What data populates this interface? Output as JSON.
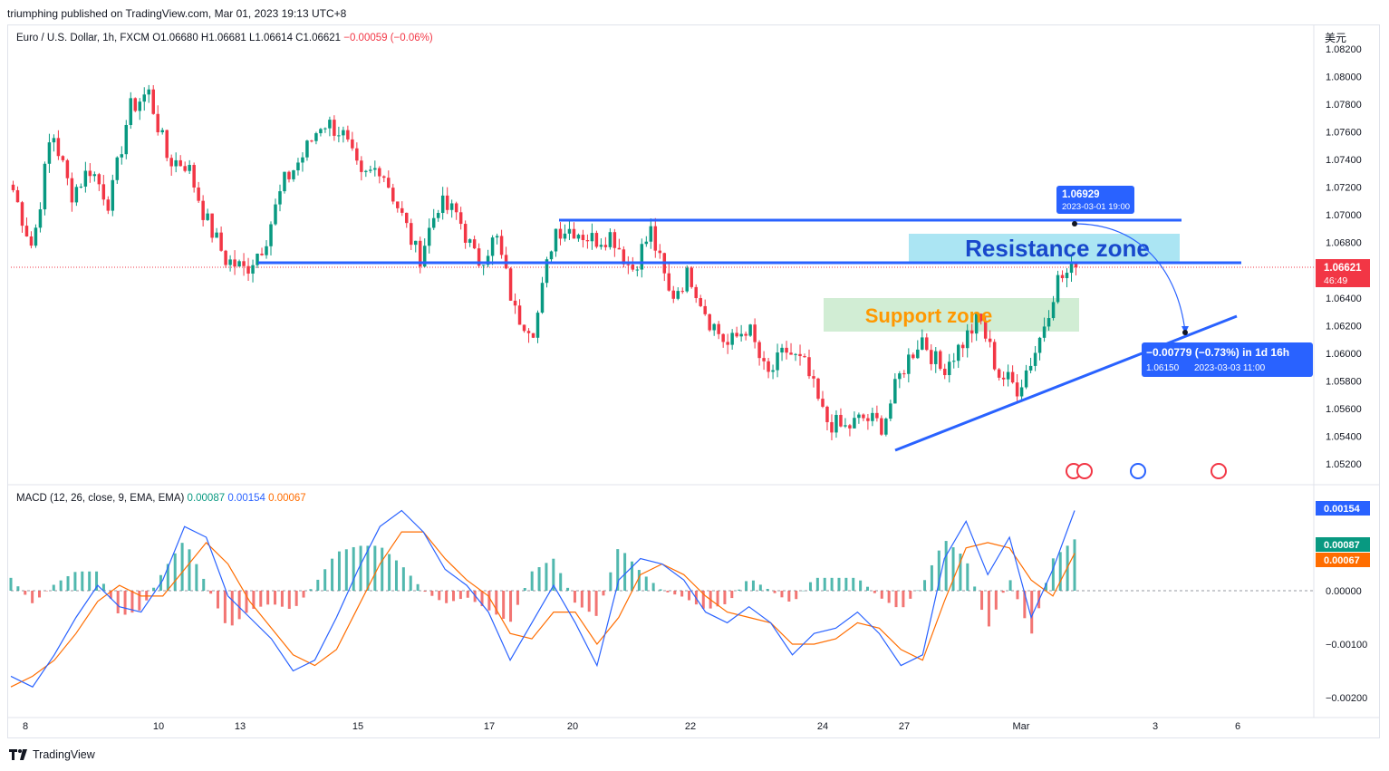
{
  "header": {
    "publisher_line": "triumphing published on TradingView.com, Mar 01, 2023 19:13 UTC+8"
  },
  "legend": {
    "symbol": "Euro / U.S. Dollar, 1h, FXCM",
    "open": "O1.06680",
    "high": "H1.06681",
    "low": "L1.06614",
    "close": "C1.06621",
    "change": "−0.00059 (−0.06%)"
  },
  "currency_label": "美元",
  "macd_legend": {
    "label": "MACD (12, 26, close, 9, EMA, EMA)",
    "v1": "0.00087",
    "v2": "0.00154",
    "v3": "0.00067"
  },
  "footer": {
    "brand": "TradingView"
  },
  "colors": {
    "up": "#089981",
    "down": "#f23645",
    "line": "#2962ff",
    "macd": "#2962ff",
    "signal": "#ff6d00",
    "hist_up": "#26a69a",
    "hist_down": "#ef5350"
  },
  "chart_data": [
    {
      "type": "candlestick",
      "title": "Euro / U.S. Dollar, 1h, FXCM",
      "x_ticks": [
        "8",
        "10",
        "13",
        "15",
        "17",
        "20",
        "22",
        "24",
        "27",
        "Mar",
        "3",
        "6"
      ],
      "y_ticks": [
        "1.08200",
        "1.08000",
        "1.07800",
        "1.07600",
        "1.07400",
        "1.07200",
        "1.07000",
        "1.06800",
        "1.06400",
        "1.06200",
        "1.06000",
        "1.05800",
        "1.05600",
        "1.05400",
        "1.05200"
      ],
      "ylim": [
        1.0513,
        1.0828
      ],
      "price_path": [
        {
          "x": "8",
          "y": 1.0718
        },
        {
          "x": "8",
          "y": 1.0676
        },
        {
          "x": "8",
          "y": 1.0762
        },
        {
          "x": "9",
          "y": 1.0715
        },
        {
          "x": "9",
          "y": 1.0734
        },
        {
          "x": "9",
          "y": 1.0708
        },
        {
          "x": "10",
          "y": 1.0776
        },
        {
          "x": "10",
          "y": 1.0789
        },
        {
          "x": "10",
          "y": 1.074
        },
        {
          "x": "10",
          "y": 1.0737
        },
        {
          "x": "13",
          "y": 1.0696
        },
        {
          "x": "13",
          "y": 1.0668
        },
        {
          "x": "13",
          "y": 1.066
        },
        {
          "x": "14",
          "y": 1.068
        },
        {
          "x": "14",
          "y": 1.0723
        },
        {
          "x": "14",
          "y": 1.0743
        },
        {
          "x": "14",
          "y": 1.0768
        },
        {
          "x": "15",
          "y": 1.076
        },
        {
          "x": "15",
          "y": 1.0725
        },
        {
          "x": "16",
          "y": 1.0736
        },
        {
          "x": "16",
          "y": 1.0703
        },
        {
          "x": "16",
          "y": 1.0668
        },
        {
          "x": "17",
          "y": 1.0708
        },
        {
          "x": "17",
          "y": 1.07
        },
        {
          "x": "17",
          "y": 1.0665
        },
        {
          "x": "18",
          "y": 1.0684
        },
        {
          "x": "18",
          "y": 1.0628
        },
        {
          "x": "19",
          "y": 1.0618
        },
        {
          "x": "19",
          "y": 1.069
        },
        {
          "x": "20",
          "y": 1.069
        },
        {
          "x": "20",
          "y": 1.0682
        },
        {
          "x": "21",
          "y": 1.0686
        },
        {
          "x": "21",
          "y": 1.066
        },
        {
          "x": "22",
          "y": 1.0688
        },
        {
          "x": "22",
          "y": 1.064
        },
        {
          "x": "23",
          "y": 1.0658
        },
        {
          "x": "23",
          "y": 1.0625
        },
        {
          "x": "23",
          "y": 1.0605
        },
        {
          "x": "24",
          "y": 1.062
        },
        {
          "x": "24",
          "y": 1.0582
        },
        {
          "x": "24",
          "y": 1.0602
        },
        {
          "x": "25",
          "y": 1.059
        },
        {
          "x": "26",
          "y": 1.0552
        },
        {
          "x": "26",
          "y": 1.0545
        },
        {
          "x": "27",
          "y": 1.0553
        },
        {
          "x": "27",
          "y": 1.0548
        },
        {
          "x": "28",
          "y": 1.0588
        },
        {
          "x": "28",
          "y": 1.0612
        },
        {
          "x": "28",
          "y": 1.0588
        },
        {
          "x": "28",
          "y": 1.0605
        },
        {
          "x": "Mar",
          "y": 1.0625
        },
        {
          "x": "Mar",
          "y": 1.0585
        },
        {
          "x": "Mar",
          "y": 1.0575
        },
        {
          "x": "Mar",
          "y": 1.0605
        },
        {
          "x": "Mar",
          "y": 1.0652
        },
        {
          "x": "Mar",
          "y": 1.0662
        }
      ],
      "last_price": {
        "value": "1.06621",
        "countdown": "46:49"
      },
      "annotations": {
        "resistance_zone": "Resistance zone",
        "support_zone": "Support zone",
        "top_label": {
          "price": "1.06929",
          "time": "2023-03-01 19:00"
        },
        "bottom_label": {
          "change": "−0.00779 (−0.73%) in 1d 16h",
          "price": "1.06150",
          "time": "2023-03-03  11:00"
        }
      }
    },
    {
      "type": "line",
      "title": "MACD (12, 26, close, 9, EMA, EMA)",
      "y_ticks": [
        "0.00000",
        "−0.00100",
        "−0.00200"
      ],
      "ylim": [
        -0.0022,
        0.0017
      ],
      "series": [
        {
          "name": "MACD",
          "values": [
            -0.0016,
            -0.0018,
            -0.0012,
            -0.0005,
            0.0001,
            -0.0003,
            -0.0004,
            0.0002,
            0.0012,
            0.001,
            -0.0001,
            -0.0005,
            -0.0009,
            -0.0015,
            -0.0013,
            -0.0005,
            0.0004,
            0.0012,
            0.0015,
            0.0011,
            0.0004,
            0.0001,
            -0.0004,
            -0.0013,
            -0.0006,
            0.0001,
            -0.0006,
            -0.0014,
            0.0002,
            0.0006,
            0.0005,
            0.0002,
            -0.0004,
            -0.0006,
            -0.0003,
            -0.0006,
            -0.0012,
            -0.0008,
            -0.0007,
            -0.0004,
            -0.0008,
            -0.0014,
            -0.0012,
            0.0006,
            0.0013,
            0.0003,
            0.001,
            -0.0005,
            0.0004,
            0.0015
          ]
        },
        {
          "name": "Signal",
          "values": [
            -0.0018,
            -0.0016,
            -0.0013,
            -0.0008,
            -0.0002,
            0.0001,
            -0.0001,
            -0.0001,
            0.0004,
            0.0009,
            0.0005,
            -0.0002,
            -0.0007,
            -0.0012,
            -0.0014,
            -0.0011,
            -0.0003,
            0.0005,
            0.0011,
            0.0011,
            0.0006,
            0.0002,
            -0.0001,
            -0.0008,
            -0.0009,
            -0.0004,
            -0.0004,
            -0.001,
            -0.0005,
            0.0003,
            0.0005,
            0.0003,
            -0.0001,
            -0.0004,
            -0.0005,
            -0.0006,
            -0.001,
            -0.001,
            -0.0009,
            -0.0006,
            -0.0007,
            -0.0011,
            -0.0013,
            -0.0002,
            0.0008,
            0.0009,
            0.0008,
            0.0002,
            -0.0001,
            0.0007
          ]
        }
      ]
    }
  ]
}
